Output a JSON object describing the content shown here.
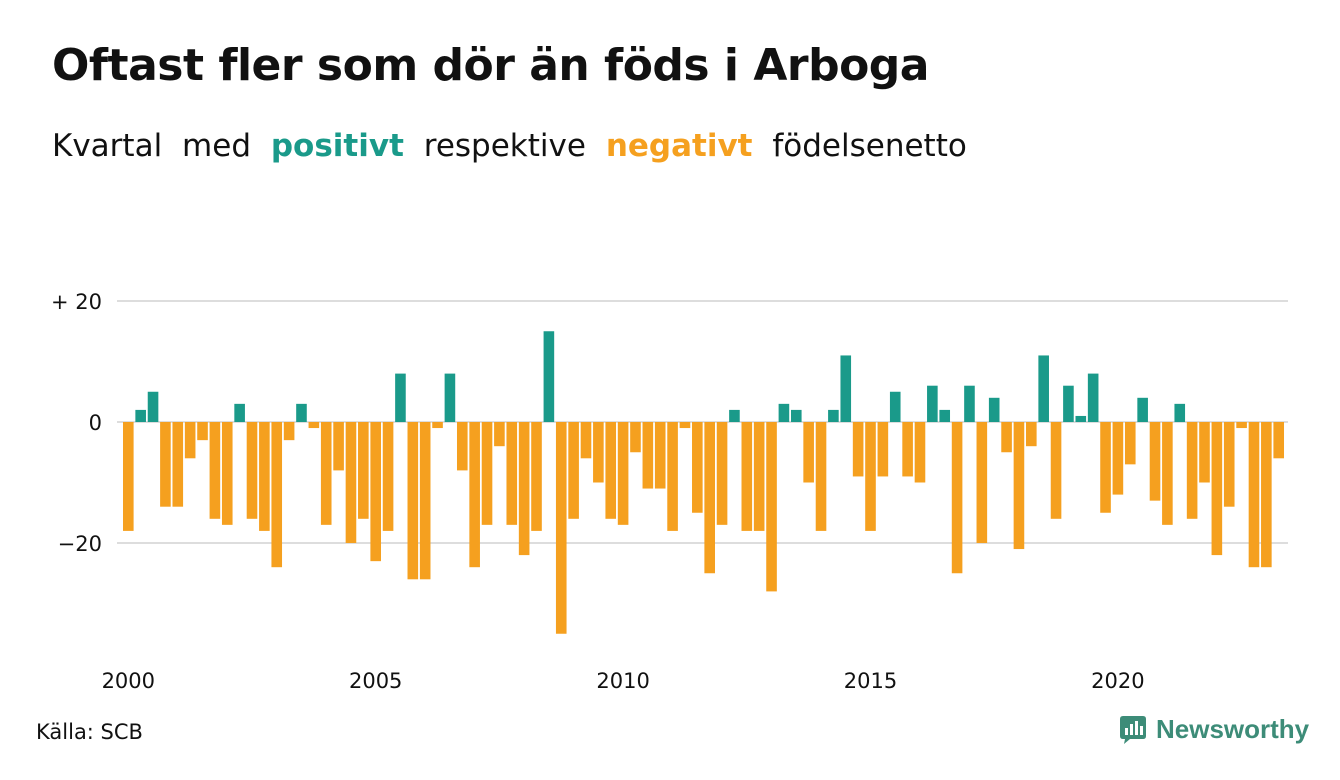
{
  "title": "Oftast fler som dör än föds i Arboga",
  "subtitle": {
    "part1": "Kvartal",
    "part2": "med",
    "positive": "positivt",
    "part3": "respektive",
    "negative": "negativt",
    "part4": "födelsenetto"
  },
  "colors": {
    "positive": "#1a9a8a",
    "negative": "#f5a01f",
    "grid": "#dddddd",
    "brand": "#3d8c78"
  },
  "source": "Källa: SCB",
  "brand": {
    "name": "Newsworthy",
    "icon": "newsworthy-logo-icon"
  },
  "chart_data": {
    "type": "bar",
    "title": "Oftast fler som dör än föds i Arboga",
    "xlabel": "",
    "ylabel": "",
    "ylim": [
      -35,
      20
    ],
    "grid": true,
    "legend": "none",
    "y_ticks": [
      {
        "value": 20,
        "label": "+ 20"
      },
      {
        "value": 0,
        "label": "0"
      },
      {
        "value": -20,
        "label": "−20"
      }
    ],
    "x_ticks": [
      "2000",
      "2005",
      "2010",
      "2015",
      "2020"
    ],
    "start_year": 2000,
    "values": [
      -18,
      2,
      5,
      -14,
      -14,
      -6,
      -3,
      -16,
      -17,
      3,
      -16,
      -18,
      -24,
      -3,
      3,
      -1,
      -17,
      -8,
      -20,
      -16,
      -23,
      -18,
      8,
      -26,
      -26,
      -1,
      8,
      -8,
      -24,
      -17,
      -4,
      -17,
      -22,
      -18,
      15,
      -35,
      -16,
      -6,
      -10,
      -16,
      -17,
      -5,
      -11,
      -11,
      -18,
      -1,
      -15,
      -25,
      -17,
      2,
      -18,
      -18,
      -28,
      3,
      2,
      -10,
      -18,
      2,
      11,
      -9,
      -18,
      -9,
      5,
      -9,
      -10,
      6,
      2,
      -25,
      6,
      -20,
      4,
      -5,
      -21,
      -4,
      11,
      -16,
      6,
      1,
      8,
      -15,
      -12,
      -7,
      4,
      -13,
      -17,
      3,
      -16,
      -10,
      -22,
      -14,
      -1,
      -24,
      -24,
      -6
    ]
  }
}
